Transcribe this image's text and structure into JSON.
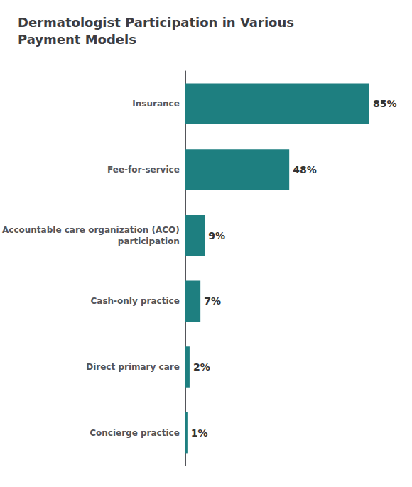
{
  "chart_data": {
    "type": "bar",
    "orientation": "horizontal",
    "title": "Dermatologist Participation in Various\nPayment Models",
    "categories": [
      "Insurance",
      "Fee-for-service",
      "Accountable care organization (ACO)\nparticipation",
      "Cash-only practice",
      "Direct primary care",
      "Concierge practice"
    ],
    "values": [
      85,
      48,
      9,
      7,
      2,
      1
    ],
    "value_labels": [
      "85%",
      "48%",
      "9%",
      "7%",
      "2%",
      "1%"
    ],
    "data_labels": true,
    "color": "#1e7f80",
    "xlim": [
      0,
      85
    ],
    "grid": false,
    "tick_labels": "y"
  }
}
